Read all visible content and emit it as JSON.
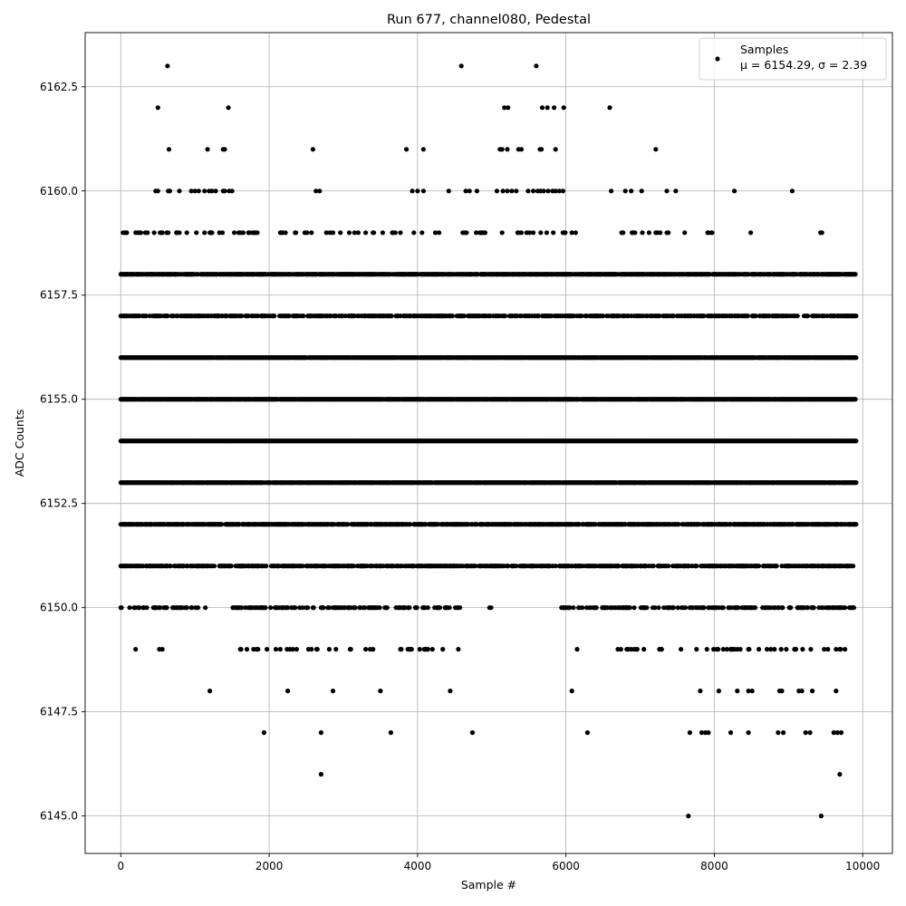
{
  "chart_data": {
    "type": "scatter",
    "title": "Run 677, channel080, Pedestal",
    "xlabel": "Sample #",
    "ylabel": "ADC Counts",
    "xlim": [
      -480,
      10400
    ],
    "ylim": [
      6144.1,
      6163.8
    ],
    "xticks": [
      0,
      2000,
      4000,
      6000,
      8000,
      10000
    ],
    "xtick_labels": [
      "0",
      "2000",
      "4000",
      "6000",
      "8000",
      "10000"
    ],
    "yticks": [
      6145.0,
      6147.5,
      6150.0,
      6152.5,
      6155.0,
      6157.5,
      6160.0,
      6162.5
    ],
    "ytick_labels": [
      "6145.0",
      "6147.5",
      "6150.0",
      "6152.5",
      "6155.0",
      "6157.5",
      "6160.0",
      "6162.5"
    ],
    "grid": true,
    "legend_position": "top-right",
    "legend": {
      "label": "Samples",
      "stats": "μ = 6154.29, σ = 2.39"
    },
    "series": [
      {
        "name": "Samples",
        "color": "#000000",
        "points": [
          [
            630,
            6163
          ],
          [
            4590,
            6163
          ],
          [
            5600,
            6163
          ],
          [
            500,
            6162
          ],
          [
            1450,
            6162
          ],
          [
            5170,
            6162
          ],
          [
            5220,
            6162
          ],
          [
            5680,
            6162
          ],
          [
            5750,
            6162
          ],
          [
            5840,
            6162
          ],
          [
            5970,
            6162
          ],
          [
            6590,
            6162
          ],
          [
            650,
            6161
          ],
          [
            1170,
            6161
          ],
          [
            1380,
            6161
          ],
          [
            1400,
            6161
          ],
          [
            2590,
            6161
          ],
          [
            3850,
            6161
          ],
          [
            4080,
            6161
          ],
          [
            5110,
            6161
          ],
          [
            5140,
            6161
          ],
          [
            5210,
            6161
          ],
          [
            5360,
            6161
          ],
          [
            5400,
            6161
          ],
          [
            5650,
            6161
          ],
          [
            5670,
            6161
          ],
          [
            5860,
            6161
          ],
          [
            7210,
            6161
          ],
          [
            470,
            6160
          ],
          [
            500,
            6160
          ],
          [
            640,
            6160
          ],
          [
            660,
            6160
          ],
          [
            790,
            6160
          ],
          [
            950,
            6160
          ],
          [
            1000,
            6160
          ],
          [
            1050,
            6160
          ],
          [
            1130,
            6160
          ],
          [
            1190,
            6160
          ],
          [
            1230,
            6160
          ],
          [
            1280,
            6160
          ],
          [
            1380,
            6160
          ],
          [
            1400,
            6160
          ],
          [
            1460,
            6160
          ],
          [
            1500,
            6160
          ],
          [
            2630,
            6160
          ],
          [
            2680,
            6160
          ],
          [
            3930,
            6160
          ],
          [
            4000,
            6160
          ],
          [
            4080,
            6160
          ],
          [
            4420,
            6160
          ],
          [
            4650,
            6160
          ],
          [
            4700,
            6160
          ],
          [
            4800,
            6160
          ],
          [
            5070,
            6160
          ],
          [
            5150,
            6160
          ],
          [
            5210,
            6160
          ],
          [
            5270,
            6160
          ],
          [
            5330,
            6160
          ],
          [
            5490,
            6160
          ],
          [
            5560,
            6160
          ],
          [
            5620,
            6160
          ],
          [
            5660,
            6160
          ],
          [
            5700,
            6160
          ],
          [
            5760,
            6160
          ],
          [
            5820,
            6160
          ],
          [
            5860,
            6160
          ],
          [
            5910,
            6160
          ],
          [
            5960,
            6160
          ],
          [
            6610,
            6160
          ],
          [
            6800,
            6160
          ],
          [
            6880,
            6160
          ],
          [
            7020,
            6160
          ],
          [
            7360,
            6160
          ],
          [
            7480,
            6160
          ],
          [
            8270,
            6160
          ],
          [
            9050,
            6160
          ]
        ],
        "density_bands": [
          {
            "y": 6159,
            "density": 0.16,
            "x_ranges": [
              [
                0,
                1850
              ],
              [
                2150,
                3300
              ],
              [
                3400,
                4300
              ],
              [
                4400,
                6300
              ],
              [
                6500,
                7300
              ],
              [
                7350,
                7700
              ],
              [
                7900,
                8000
              ],
              [
                8300,
                8700
              ],
              [
                9180,
                9230
              ],
              [
                9400,
                9500
              ]
            ],
            "seed": 11
          },
          {
            "y": 6158,
            "density": 0.8,
            "x_ranges": [
              [
                0,
                9910
              ]
            ],
            "seed": 12
          },
          {
            "y": 6157,
            "density": 0.58,
            "x_ranges": [
              [
                0,
                9910
              ]
            ],
            "seed": 13
          },
          {
            "y": 6156,
            "density": 0.95,
            "x_ranges": [
              [
                0,
                9910
              ]
            ],
            "seed": 14
          },
          {
            "y": 6155,
            "density": 0.95,
            "x_ranges": [
              [
                0,
                9910
              ]
            ],
            "seed": 15
          },
          {
            "y": 6154,
            "density": 1.0,
            "x_ranges": [
              [
                0,
                9910
              ]
            ],
            "seed": 16
          },
          {
            "y": 6153,
            "density": 0.95,
            "x_ranges": [
              [
                0,
                9910
              ]
            ],
            "seed": 17
          },
          {
            "y": 6152,
            "density": 0.75,
            "x_ranges": [
              [
                0,
                9910
              ]
            ],
            "seed": 18
          },
          {
            "y": 6151,
            "density": 0.55,
            "x_ranges": [
              [
                0,
                9910
              ]
            ],
            "seed": 19
          },
          {
            "y": 6150,
            "density": 0.38,
            "x_ranges": [
              [
                0,
                1200
              ],
              [
                1500,
                3600
              ],
              [
                3700,
                4700
              ],
              [
                4950,
                5000
              ],
              [
                5300,
                5320
              ],
              [
                5560,
                5580
              ],
              [
                5900,
                9910
              ]
            ],
            "seed": 20
          },
          {
            "y": 6149,
            "density": 0.13,
            "x_ranges": [
              [
                1500,
                3400
              ],
              [
                3700,
                4700
              ],
              [
                6700,
                7400
              ],
              [
                7550,
                9910
              ]
            ],
            "seed": 21
          }
        ],
        "sparse_points": [
          [
            200,
            6149
          ],
          [
            520,
            6149
          ],
          [
            560,
            6149
          ],
          [
            6150,
            6149
          ],
          [
            1200,
            6148
          ],
          [
            2250,
            6148
          ],
          [
            2860,
            6148
          ],
          [
            3500,
            6148
          ],
          [
            4440,
            6148
          ],
          [
            6080,
            6148
          ],
          [
            7810,
            6148
          ],
          [
            8060,
            6148
          ],
          [
            8310,
            6148
          ],
          [
            8460,
            6148
          ],
          [
            8510,
            6148
          ],
          [
            8880,
            6148
          ],
          [
            8910,
            6148
          ],
          [
            9140,
            6148
          ],
          [
            9180,
            6148
          ],
          [
            9320,
            6148
          ],
          [
            9640,
            6148
          ],
          [
            1930,
            6147
          ],
          [
            2700,
            6147
          ],
          [
            3640,
            6147
          ],
          [
            4740,
            6147
          ],
          [
            6290,
            6147
          ],
          [
            7670,
            6147
          ],
          [
            7830,
            6147
          ],
          [
            7880,
            6147
          ],
          [
            7920,
            6147
          ],
          [
            8220,
            6147
          ],
          [
            8460,
            6147
          ],
          [
            8860,
            6147
          ],
          [
            8930,
            6147
          ],
          [
            9230,
            6147
          ],
          [
            9290,
            6147
          ],
          [
            9610,
            6147
          ],
          [
            9660,
            6147
          ],
          [
            9710,
            6147
          ],
          [
            2700,
            6146
          ],
          [
            9690,
            6146
          ],
          [
            7650,
            6145
          ],
          [
            9440,
            6145
          ]
        ]
      }
    ]
  }
}
